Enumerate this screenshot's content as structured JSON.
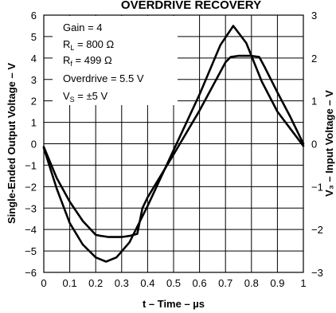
{
  "chart_data": {
    "type": "line",
    "title": "OVERDRIVE RECOVERY",
    "xlabel": "t – Time – µs",
    "ylabel_left": "Single-Ended Output Voltage – V",
    "ylabel_right": "V₃ – Input Voltage – V",
    "xlim": [
      0,
      1
    ],
    "ylim_left": [
      -6,
      6
    ],
    "ylim_right": [
      -3,
      3
    ],
    "grid": true,
    "x_ticks": [
      "0",
      "0.1",
      "0.2",
      "0.3",
      "0.4",
      "0.5",
      "0.6",
      "0.7",
      "0.8",
      "0.9",
      "1"
    ],
    "y_left_ticks": [
      "6",
      "5",
      "4",
      "3",
      "2",
      "1",
      "0",
      "−1",
      "−2",
      "−3",
      "−4",
      "−5",
      "−6"
    ],
    "y_right_ticks": [
      "3",
      "2",
      "1",
      "0",
      "−1",
      "−2",
      "−3"
    ],
    "annotation": {
      "gain": "Gain = 4",
      "rl_main": "R",
      "rl_sub": "L",
      "rl_val": " = 800 Ω",
      "rf_main": "R",
      "rf_sub": "f",
      "rf_val": " = 499 Ω",
      "overdrive": "Overdrive = 5.5 V",
      "vs_main": "V",
      "vs_sub": "S",
      "vs_val": " = ±5 V"
    },
    "series": [
      {
        "axis": "right",
        "x": [
          0,
          0.05,
          0.1,
          0.15,
          0.2,
          0.24,
          0.28,
          0.33,
          0.4,
          0.5,
          0.6,
          0.68,
          0.73,
          0.78,
          0.84,
          0.9,
          0.95,
          1.0
        ],
        "values": [
          -0.1,
          -1.05,
          -1.85,
          -2.35,
          -2.65,
          -2.75,
          -2.65,
          -2.3,
          -1.45,
          -0.15,
          1.15,
          2.3,
          2.75,
          2.35,
          1.45,
          0.75,
          0.35,
          -0.05
        ]
      },
      {
        "axis": "left",
        "x": [
          0,
          0.05,
          0.1,
          0.15,
          0.2,
          0.22,
          0.25,
          0.3,
          0.33,
          0.36,
          0.38,
          0.4,
          0.5,
          0.6,
          0.7,
          0.72,
          0.75,
          0.8,
          0.83,
          0.85,
          0.9,
          0.95,
          1.0
        ],
        "values": [
          -0.15,
          -1.6,
          -2.7,
          -3.6,
          -4.25,
          -4.3,
          -4.35,
          -4.35,
          -4.3,
          -4.2,
          -3.0,
          -2.5,
          -0.5,
          1.55,
          3.8,
          4.05,
          4.1,
          4.1,
          4.05,
          3.6,
          2.4,
          1.25,
          0.0
        ]
      }
    ]
  }
}
